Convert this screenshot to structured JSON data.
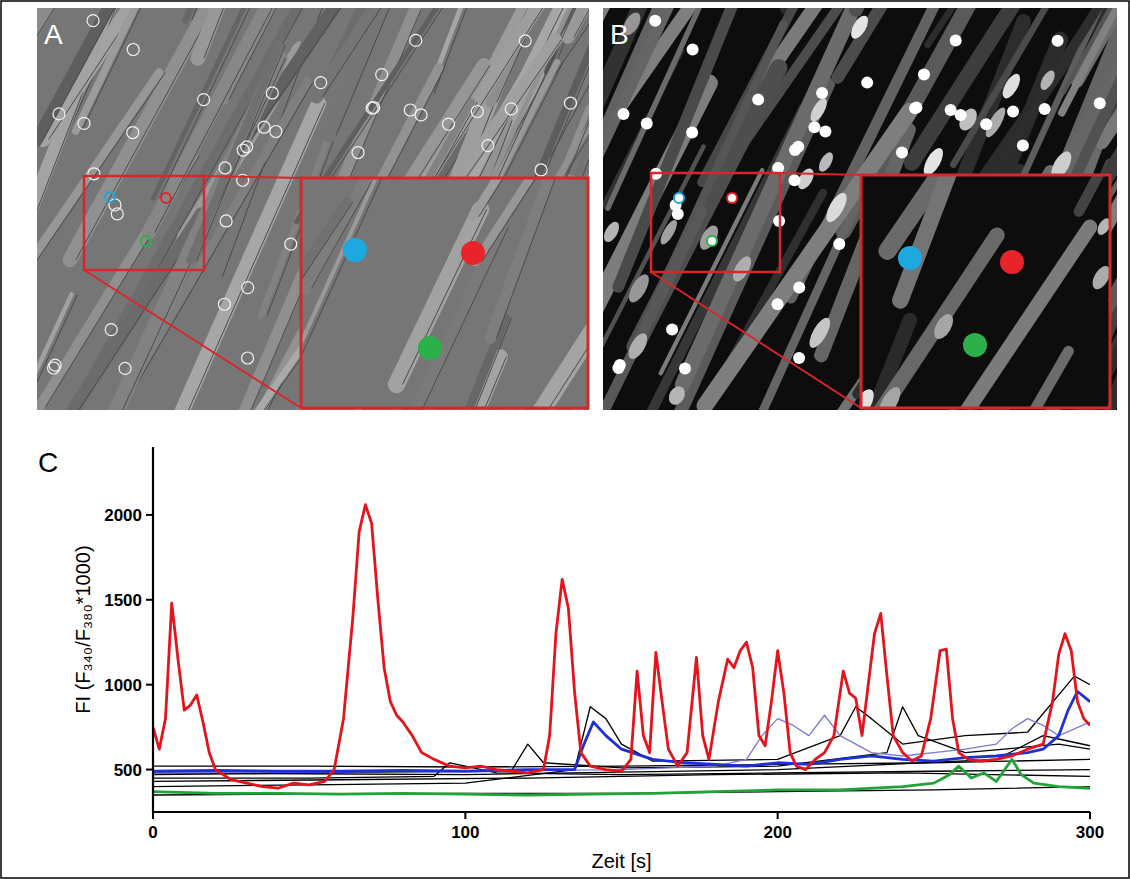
{
  "panel_labels": [
    "A",
    "B",
    "C"
  ],
  "chart_data": {
    "type": "line",
    "x_label": "Zeit [s]",
    "y_label": "FI (F₃₄₀/F₃₈₀*1000)",
    "xlim": [
      0,
      300
    ],
    "xticks": [
      0,
      100,
      200,
      300
    ],
    "ylim": [
      250,
      2400
    ],
    "yticks": [
      500,
      1000,
      1500,
      2000
    ],
    "grid": false,
    "series": [
      {
        "color": "#000000",
        "line_style": "thin",
        "x": [
          0,
          50,
          100,
          150,
          200,
          250,
          300
        ],
        "values": [
          520,
          520,
          515,
          520,
          530,
          540,
          560
        ]
      },
      {
        "color": "#000000",
        "line_style": "thin",
        "x": [
          0,
          50,
          90,
          95,
          100,
          110,
          150,
          200,
          250,
          300
        ],
        "values": [
          450,
          450,
          460,
          540,
          520,
          480,
          470,
          480,
          490,
          500
        ]
      },
      {
        "color": "#000000",
        "line_style": "thin",
        "x": [
          0,
          50,
          100,
          135,
          140,
          145,
          150,
          160,
          200,
          220,
          225,
          230,
          240,
          260,
          280,
          295,
          300
        ],
        "values": [
          400,
          410,
          420,
          500,
          870,
          800,
          650,
          550,
          560,
          700,
          870,
          800,
          650,
          700,
          720,
          1050,
          1000
        ]
      },
      {
        "color": "#000000",
        "line_style": "thin",
        "x": [
          0,
          50,
          100,
          115,
          120,
          125,
          150,
          200,
          235,
          240,
          245,
          260,
          290,
          300
        ],
        "values": [
          470,
          480,
          490,
          500,
          650,
          540,
          510,
          520,
          600,
          870,
          700,
          600,
          650,
          620
        ]
      },
      {
        "color": "#000000",
        "line_style": "thin",
        "x": [
          0,
          100,
          150,
          200,
          250,
          300
        ],
        "values": [
          350,
          360,
          360,
          370,
          380,
          400
        ]
      },
      {
        "color": "#000000",
        "line_style": "thin",
        "x": [
          0,
          60,
          120,
          180,
          240,
          300
        ],
        "values": [
          430,
          440,
          450,
          470,
          480,
          460
        ]
      },
      {
        "color": "#000000",
        "line_style": "thin",
        "x": [
          0,
          100,
          200,
          270,
          285,
          290,
          300
        ],
        "values": [
          480,
          470,
          500,
          560,
          700,
          680,
          640
        ]
      },
      {
        "color": "#7a7ad6",
        "line_style": "thin",
        "x": [
          0,
          50,
          100,
          150,
          180,
          190,
          195,
          200,
          205,
          210,
          215,
          220,
          230,
          240,
          250,
          260,
          270,
          275,
          280,
          285,
          290,
          300
        ],
        "values": [
          480,
          485,
          490,
          500,
          520,
          560,
          700,
          800,
          760,
          700,
          820,
          700,
          600,
          580,
          600,
          620,
          650,
          740,
          800,
          760,
          700,
          780
        ]
      },
      {
        "color": "#22a33a",
        "line_style": "solid",
        "x": [
          0,
          20,
          40,
          60,
          80,
          100,
          120,
          140,
          160,
          180,
          200,
          220,
          240,
          250,
          255,
          258,
          262,
          266,
          270,
          275,
          278,
          282,
          290,
          300
        ],
        "values": [
          370,
          360,
          360,
          355,
          360,
          355,
          350,
          355,
          360,
          370,
          380,
          380,
          400,
          420,
          470,
          520,
          450,
          480,
          430,
          560,
          470,
          420,
          400,
          390
        ]
      },
      {
        "color": "#1f2fd6",
        "line_style": "solid",
        "x": [
          0,
          20,
          40,
          60,
          80,
          100,
          120,
          135,
          138,
          141,
          145,
          150,
          160,
          170,
          180,
          190,
          200,
          210,
          220,
          230,
          240,
          250,
          260,
          270,
          280,
          285,
          290,
          293,
          296,
          300
        ],
        "values": [
          490,
          495,
          490,
          490,
          495,
          490,
          500,
          500,
          650,
          780,
          700,
          620,
          560,
          540,
          530,
          520,
          540,
          530,
          560,
          580,
          560,
          550,
          570,
          580,
          600,
          620,
          700,
          850,
          960,
          900
        ]
      },
      {
        "color": "#e3141b",
        "line_style": "solid",
        "x": [
          0,
          2,
          4,
          6,
          8,
          10,
          12,
          14,
          16,
          18,
          20,
          25,
          30,
          35,
          40,
          45,
          50,
          55,
          58,
          61,
          64,
          66,
          68,
          70,
          72,
          74,
          76,
          78,
          80,
          83,
          86,
          90,
          95,
          100,
          105,
          110,
          115,
          120,
          125,
          127,
          129,
          131,
          133,
          135,
          137,
          140,
          145,
          150,
          153,
          155,
          157,
          159,
          161,
          163,
          165,
          168,
          171,
          174,
          176,
          178,
          181,
          184,
          186,
          188,
          190,
          192,
          194,
          196,
          198,
          200,
          202,
          204,
          206,
          209,
          212,
          215,
          218,
          221,
          223,
          225,
          227,
          229,
          231,
          233,
          235,
          237,
          240,
          243,
          246,
          249,
          252,
          254,
          256,
          258,
          261,
          265,
          270,
          275,
          280,
          285,
          288,
          290,
          292,
          294,
          296,
          298,
          300
        ],
        "values": [
          750,
          620,
          800,
          1480,
          1150,
          850,
          880,
          940,
          780,
          600,
          500,
          440,
          420,
          400,
          390,
          420,
          410,
          430,
          500,
          800,
          1400,
          1900,
          2060,
          1950,
          1500,
          1100,
          900,
          820,
          780,
          700,
          600,
          560,
          520,
          510,
          520,
          500,
          490,
          480,
          500,
          700,
          1300,
          1620,
          1450,
          950,
          600,
          520,
          500,
          490,
          560,
          1080,
          700,
          600,
          1190,
          900,
          620,
          520,
          600,
          1160,
          700,
          560,
          900,
          1150,
          1100,
          1200,
          1250,
          1100,
          700,
          640,
          900,
          1200,
          950,
          600,
          520,
          500,
          560,
          600,
          700,
          1080,
          950,
          920,
          700,
          1000,
          1300,
          1420,
          1050,
          700,
          600,
          550,
          580,
          800,
          1200,
          1210,
          800,
          600,
          560,
          550,
          560,
          580,
          620,
          650,
          900,
          1180,
          1300,
          1200,
          900,
          800,
          760
        ]
      }
    ]
  }
}
